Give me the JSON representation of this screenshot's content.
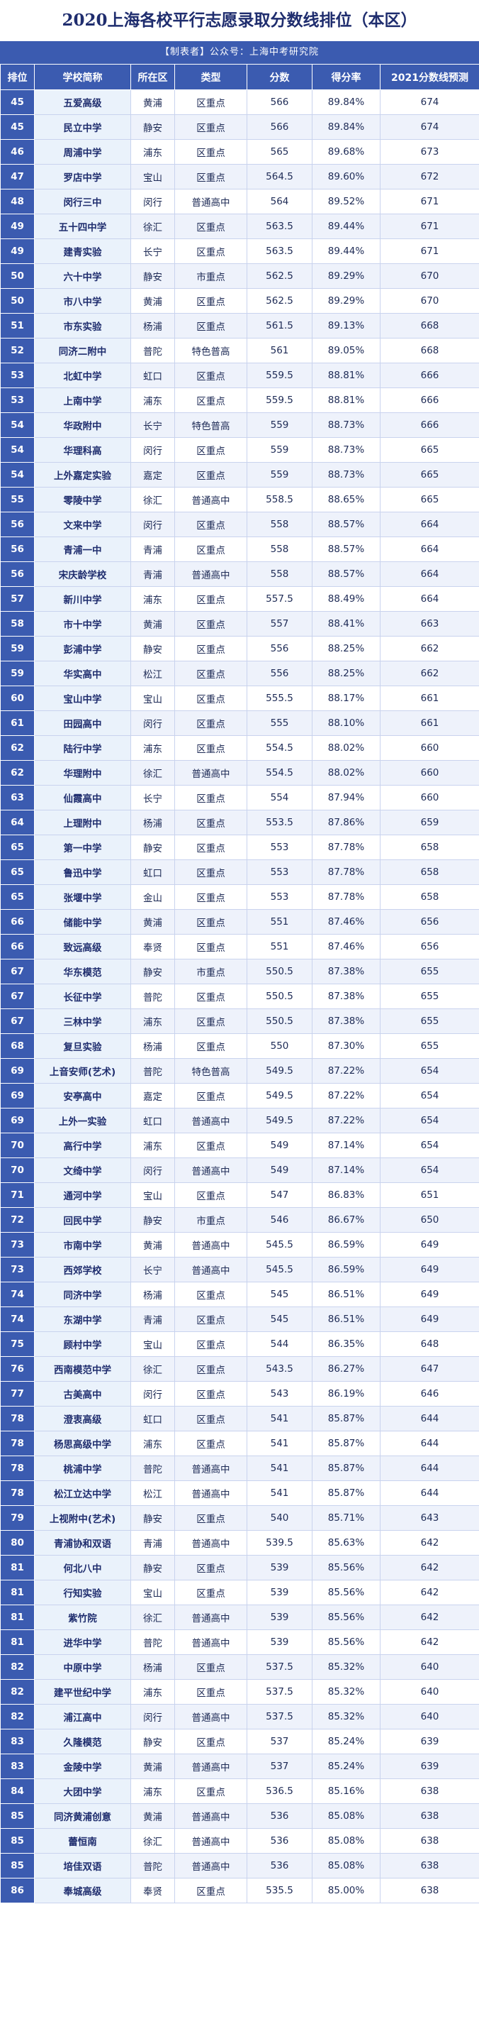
{
  "title": "2020上海各校平行志愿录取分数线排位（本区）",
  "subtitle": "【制表者】公众号：上海中考研究院",
  "columns": [
    "排位",
    "学校简称",
    "所在区",
    "类型",
    "分数",
    "得分率",
    "2021分数线预测"
  ],
  "colors": {
    "header_bg": "#3b5bb0",
    "name_bg": "#eaf2fb",
    "title_text": "#1f2d6e"
  },
  "rows": [
    [
      "45",
      "五爱高级",
      "黄浦",
      "区重点",
      "566",
      "89.84%",
      "674"
    ],
    [
      "45",
      "民立中学",
      "静安",
      "区重点",
      "566",
      "89.84%",
      "674"
    ],
    [
      "46",
      "周浦中学",
      "浦东",
      "区重点",
      "565",
      "89.68%",
      "673"
    ],
    [
      "47",
      "罗店中学",
      "宝山",
      "区重点",
      "564.5",
      "89.60%",
      "672"
    ],
    [
      "48",
      "闵行三中",
      "闵行",
      "普通高中",
      "564",
      "89.52%",
      "671"
    ],
    [
      "49",
      "五十四中学",
      "徐汇",
      "区重点",
      "563.5",
      "89.44%",
      "671"
    ],
    [
      "49",
      "建青实验",
      "长宁",
      "区重点",
      "563.5",
      "89.44%",
      "671"
    ],
    [
      "50",
      "六十中学",
      "静安",
      "市重点",
      "562.5",
      "89.29%",
      "670"
    ],
    [
      "50",
      "市八中学",
      "黄浦",
      "区重点",
      "562.5",
      "89.29%",
      "670"
    ],
    [
      "51",
      "市东实验",
      "杨浦",
      "区重点",
      "561.5",
      "89.13%",
      "668"
    ],
    [
      "52",
      "同济二附中",
      "普陀",
      "特色普高",
      "561",
      "89.05%",
      "668"
    ],
    [
      "53",
      "北虹中学",
      "虹口",
      "区重点",
      "559.5",
      "88.81%",
      "666"
    ],
    [
      "53",
      "上南中学",
      "浦东",
      "区重点",
      "559.5",
      "88.81%",
      "666"
    ],
    [
      "54",
      "华政附中",
      "长宁",
      "特色普高",
      "559",
      "88.73%",
      "666"
    ],
    [
      "54",
      "华理科高",
      "闵行",
      "区重点",
      "559",
      "88.73%",
      "665"
    ],
    [
      "54",
      "上外嘉定实验",
      "嘉定",
      "区重点",
      "559",
      "88.73%",
      "665"
    ],
    [
      "55",
      "零陵中学",
      "徐汇",
      "普通高中",
      "558.5",
      "88.65%",
      "665"
    ],
    [
      "56",
      "文来中学",
      "闵行",
      "区重点",
      "558",
      "88.57%",
      "664"
    ],
    [
      "56",
      "青浦一中",
      "青浦",
      "区重点",
      "558",
      "88.57%",
      "664"
    ],
    [
      "56",
      "宋庆龄学校",
      "青浦",
      "普通高中",
      "558",
      "88.57%",
      "664"
    ],
    [
      "57",
      "新川中学",
      "浦东",
      "区重点",
      "557.5",
      "88.49%",
      "664"
    ],
    [
      "58",
      "市十中学",
      "黄浦",
      "区重点",
      "557",
      "88.41%",
      "663"
    ],
    [
      "59",
      "彭浦中学",
      "静安",
      "区重点",
      "556",
      "88.25%",
      "662"
    ],
    [
      "59",
      "华实高中",
      "松江",
      "区重点",
      "556",
      "88.25%",
      "662"
    ],
    [
      "60",
      "宝山中学",
      "宝山",
      "区重点",
      "555.5",
      "88.17%",
      "661"
    ],
    [
      "61",
      "田园高中",
      "闵行",
      "区重点",
      "555",
      "88.10%",
      "661"
    ],
    [
      "62",
      "陆行中学",
      "浦东",
      "区重点",
      "554.5",
      "88.02%",
      "660"
    ],
    [
      "62",
      "华理附中",
      "徐汇",
      "普通高中",
      "554.5",
      "88.02%",
      "660"
    ],
    [
      "63",
      "仙霞高中",
      "长宁",
      "区重点",
      "554",
      "87.94%",
      "660"
    ],
    [
      "64",
      "上理附中",
      "杨浦",
      "区重点",
      "553.5",
      "87.86%",
      "659"
    ],
    [
      "65",
      "第一中学",
      "静安",
      "区重点",
      "553",
      "87.78%",
      "658"
    ],
    [
      "65",
      "鲁迅中学",
      "虹口",
      "区重点",
      "553",
      "87.78%",
      "658"
    ],
    [
      "65",
      "张堰中学",
      "金山",
      "区重点",
      "553",
      "87.78%",
      "658"
    ],
    [
      "66",
      "储能中学",
      "黄浦",
      "区重点",
      "551",
      "87.46%",
      "656"
    ],
    [
      "66",
      "致远高级",
      "奉贤",
      "区重点",
      "551",
      "87.46%",
      "656"
    ],
    [
      "67",
      "华东模范",
      "静安",
      "市重点",
      "550.5",
      "87.38%",
      "655"
    ],
    [
      "67",
      "长征中学",
      "普陀",
      "区重点",
      "550.5",
      "87.38%",
      "655"
    ],
    [
      "67",
      "三林中学",
      "浦东",
      "区重点",
      "550.5",
      "87.38%",
      "655"
    ],
    [
      "68",
      "复旦实验",
      "杨浦",
      "区重点",
      "550",
      "87.30%",
      "655"
    ],
    [
      "69",
      "上音安师(艺术)",
      "普陀",
      "特色普高",
      "549.5",
      "87.22%",
      "654"
    ],
    [
      "69",
      "安亭高中",
      "嘉定",
      "区重点",
      "549.5",
      "87.22%",
      "654"
    ],
    [
      "69",
      "上外一实验",
      "虹口",
      "普通高中",
      "549.5",
      "87.22%",
      "654"
    ],
    [
      "70",
      "高行中学",
      "浦东",
      "区重点",
      "549",
      "87.14%",
      "654"
    ],
    [
      "70",
      "文绮中学",
      "闵行",
      "普通高中",
      "549",
      "87.14%",
      "654"
    ],
    [
      "71",
      "通河中学",
      "宝山",
      "区重点",
      "547",
      "86.83%",
      "651"
    ],
    [
      "72",
      "回民中学",
      "静安",
      "市重点",
      "546",
      "86.67%",
      "650"
    ],
    [
      "73",
      "市南中学",
      "黄浦",
      "普通高中",
      "545.5",
      "86.59%",
      "649"
    ],
    [
      "73",
      "西郊学校",
      "长宁",
      "普通高中",
      "545.5",
      "86.59%",
      "649"
    ],
    [
      "74",
      "同济中学",
      "杨浦",
      "区重点",
      "545",
      "86.51%",
      "649"
    ],
    [
      "74",
      "东湖中学",
      "青浦",
      "区重点",
      "545",
      "86.51%",
      "649"
    ],
    [
      "75",
      "顾村中学",
      "宝山",
      "区重点",
      "544",
      "86.35%",
      "648"
    ],
    [
      "76",
      "西南模范中学",
      "徐汇",
      "区重点",
      "543.5",
      "86.27%",
      "647"
    ],
    [
      "77",
      "古美高中",
      "闵行",
      "区重点",
      "543",
      "86.19%",
      "646"
    ],
    [
      "78",
      "澄衷高级",
      "虹口",
      "区重点",
      "541",
      "85.87%",
      "644"
    ],
    [
      "78",
      "杨思高级中学",
      "浦东",
      "区重点",
      "541",
      "85.87%",
      "644"
    ],
    [
      "78",
      "桃浦中学",
      "普陀",
      "普通高中",
      "541",
      "85.87%",
      "644"
    ],
    [
      "78",
      "松江立达中学",
      "松江",
      "普通高中",
      "541",
      "85.87%",
      "644"
    ],
    [
      "79",
      "上视附中(艺术)",
      "静安",
      "区重点",
      "540",
      "85.71%",
      "643"
    ],
    [
      "80",
      "青浦协和双语",
      "青浦",
      "普通高中",
      "539.5",
      "85.63%",
      "642"
    ],
    [
      "81",
      "何北八中",
      "静安",
      "区重点",
      "539",
      "85.56%",
      "642"
    ],
    [
      "81",
      "行知实验",
      "宝山",
      "区重点",
      "539",
      "85.56%",
      "642"
    ],
    [
      "81",
      "紫竹院",
      "徐汇",
      "普通高中",
      "539",
      "85.56%",
      "642"
    ],
    [
      "81",
      "进华中学",
      "普陀",
      "普通高中",
      "539",
      "85.56%",
      "642"
    ],
    [
      "82",
      "中原中学",
      "杨浦",
      "区重点",
      "537.5",
      "85.32%",
      "640"
    ],
    [
      "82",
      "建平世纪中学",
      "浦东",
      "区重点",
      "537.5",
      "85.32%",
      "640"
    ],
    [
      "82",
      "浦江高中",
      "闵行",
      "普通高中",
      "537.5",
      "85.32%",
      "640"
    ],
    [
      "83",
      "久隆模范",
      "静安",
      "区重点",
      "537",
      "85.24%",
      "639"
    ],
    [
      "83",
      "金陵中学",
      "黄浦",
      "普通高中",
      "537",
      "85.24%",
      "639"
    ],
    [
      "84",
      "大团中学",
      "浦东",
      "区重点",
      "536.5",
      "85.16%",
      "638"
    ],
    [
      "85",
      "同济黄浦创意",
      "黄浦",
      "普通高中",
      "536",
      "85.08%",
      "638"
    ],
    [
      "85",
      "蕾恒南",
      "徐汇",
      "普通高中",
      "536",
      "85.08%",
      "638"
    ],
    [
      "85",
      "培佳双语",
      "普陀",
      "普通高中",
      "536",
      "85.08%",
      "638"
    ],
    [
      "86",
      "奉城高级",
      "奉贤",
      "区重点",
      "535.5",
      "85.00%",
      "638"
    ]
  ]
}
